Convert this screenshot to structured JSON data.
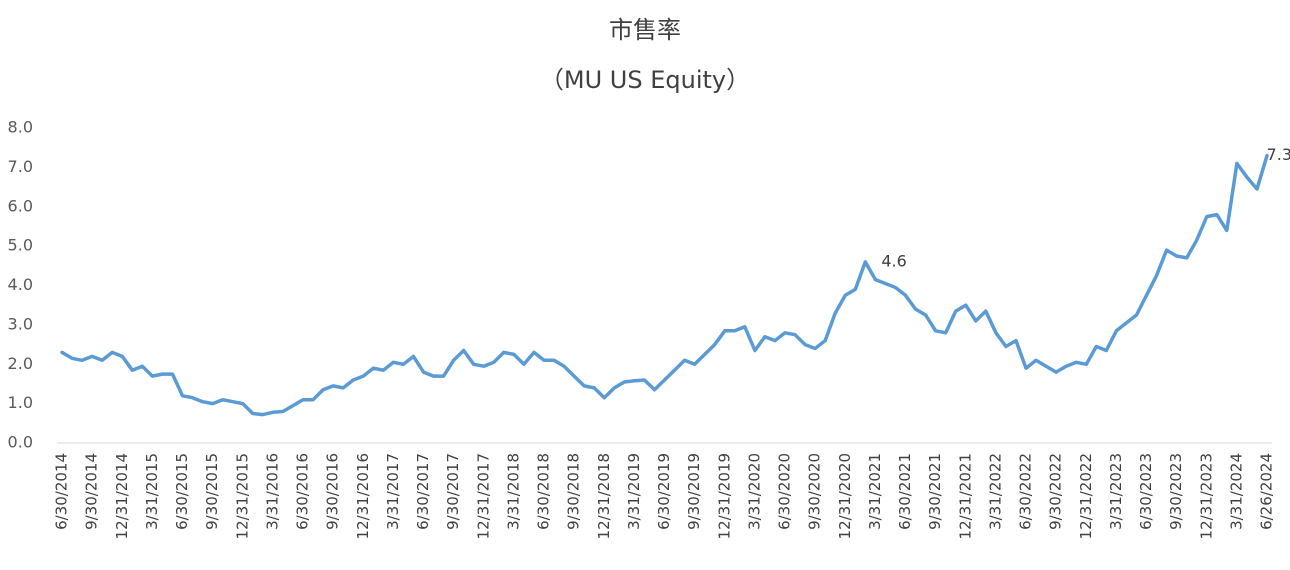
{
  "chart_data": {
    "type": "line",
    "title": "市售率",
    "subtitle": "（MU US Equity）",
    "categories": [
      "6/30/2014",
      null,
      null,
      "9/30/2014",
      null,
      null,
      "12/31/2014",
      null,
      null,
      "3/31/2015",
      null,
      null,
      "6/30/2015",
      null,
      null,
      "9/30/2015",
      null,
      null,
      "12/31/2015",
      null,
      null,
      "3/31/2016",
      null,
      null,
      "6/30/2016",
      null,
      null,
      "9/30/2016",
      null,
      null,
      "12/31/2016",
      null,
      null,
      "3/31/2017",
      null,
      null,
      "6/30/2017",
      null,
      null,
      "9/30/2017",
      null,
      null,
      "12/31/2017",
      null,
      null,
      "3/31/2018",
      null,
      null,
      "6/30/2018",
      null,
      null,
      "9/30/2018",
      null,
      null,
      "12/31/2018",
      null,
      null,
      "3/31/2019",
      null,
      null,
      "6/30/2019",
      null,
      null,
      "9/30/2019",
      null,
      null,
      "12/31/2019",
      null,
      null,
      "3/31/2020",
      null,
      null,
      "6/30/2020",
      null,
      null,
      "9/30/2020",
      null,
      null,
      "12/31/2020",
      null,
      null,
      "3/31/2021",
      null,
      null,
      "6/30/2021",
      null,
      null,
      "9/30/2021",
      null,
      null,
      "12/31/2021",
      null,
      null,
      "3/31/2022",
      null,
      null,
      "6/30/2022",
      null,
      null,
      "9/30/2022",
      null,
      null,
      "12/31/2022",
      null,
      null,
      "3/31/2023",
      null,
      null,
      "6/30/2023",
      null,
      null,
      "9/30/2023",
      null,
      null,
      "12/31/2023",
      null,
      null,
      "3/31/2024",
      null,
      null,
      "6/26/2024"
    ],
    "values": [
      2.3,
      2.15,
      2.1,
      2.2,
      2.1,
      2.3,
      2.2,
      1.85,
      1.95,
      1.7,
      1.75,
      1.75,
      1.2,
      1.15,
      1.05,
      1.0,
      1.1,
      1.05,
      1.0,
      0.75,
      0.72,
      0.78,
      0.8,
      0.95,
      1.1,
      1.1,
      1.35,
      1.45,
      1.4,
      1.6,
      1.7,
      1.9,
      1.85,
      2.05,
      2.0,
      2.2,
      1.8,
      1.7,
      1.7,
      2.1,
      2.35,
      2.0,
      1.95,
      2.05,
      2.3,
      2.25,
      2.0,
      2.3,
      2.1,
      2.1,
      1.95,
      1.7,
      1.45,
      1.4,
      1.15,
      1.4,
      1.55,
      1.58,
      1.6,
      1.35,
      1.6,
      1.85,
      2.1,
      2.0,
      2.25,
      2.5,
      2.85,
      2.85,
      2.95,
      2.35,
      2.7,
      2.6,
      2.8,
      2.75,
      2.5,
      2.4,
      2.6,
      3.3,
      3.75,
      3.9,
      4.6,
      4.15,
      4.05,
      3.95,
      3.75,
      3.4,
      3.25,
      2.85,
      2.8,
      3.35,
      3.5,
      3.1,
      3.35,
      2.8,
      2.45,
      2.6,
      1.9,
      2.1,
      1.95,
      1.8,
      1.95,
      2.05,
      2.0,
      2.45,
      2.35,
      2.85,
      3.05,
      3.25,
      3.75,
      4.25,
      4.9,
      4.75,
      4.7,
      5.15,
      5.75,
      5.8,
      5.4,
      7.1,
      6.75,
      6.45,
      7.3
    ],
    "value_labels": [
      null,
      null,
      null,
      null,
      null,
      null,
      null,
      null,
      null,
      null,
      null,
      null,
      null,
      null,
      null,
      null,
      null,
      null,
      null,
      null,
      null,
      null,
      null,
      null,
      null,
      null,
      null,
      null,
      null,
      null,
      null,
      null,
      null,
      null,
      null,
      null,
      null,
      null,
      null,
      null,
      null,
      null,
      null,
      null,
      null,
      null,
      null,
      null,
      null,
      null,
      null,
      null,
      null,
      null,
      null,
      null,
      null,
      null,
      null,
      null,
      null,
      null,
      null,
      null,
      null,
      null,
      null,
      null,
      null,
      null,
      null,
      null,
      null,
      null,
      null,
      null,
      null,
      null,
      null,
      null,
      "4.6",
      null,
      null,
      null,
      null,
      null,
      null,
      null,
      null,
      null,
      null,
      null,
      null,
      null,
      null,
      null,
      null,
      null,
      null,
      null,
      null,
      null,
      null,
      null,
      null,
      null,
      null,
      null,
      null,
      null,
      null,
      null,
      null,
      null,
      null,
      null,
      null,
      null,
      null,
      null,
      "7.3"
    ],
    "color": "#5b9bd5",
    "ylim": [
      0,
      8
    ],
    "yticks": [
      {
        "value": 0,
        "label": "0.0"
      },
      {
        "value": 1,
        "label": "1.0"
      },
      {
        "value": 2,
        "label": "2.0"
      },
      {
        "value": 3,
        "label": "3.0"
      },
      {
        "value": 4,
        "label": "4.0"
      },
      {
        "value": 5,
        "label": "5.0"
      },
      {
        "value": 6,
        "label": "6.0"
      },
      {
        "value": 7,
        "label": "7.0"
      },
      {
        "value": 8,
        "label": "8.0"
      }
    ],
    "grid": false
  }
}
